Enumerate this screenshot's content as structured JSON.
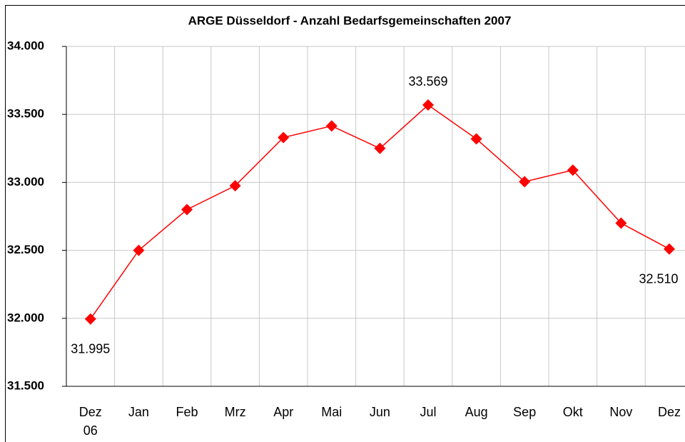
{
  "chart_data": {
    "type": "line",
    "title": "ARGE Düsseldorf - Anzahl Bedarfsgemeinschaften 2007",
    "categories": [
      "Dez 06",
      "Jan",
      "Feb",
      "Mrz",
      "Apr",
      "Mai",
      "Jun",
      "Jul",
      "Aug",
      "Sep",
      "Okt",
      "Nov",
      "Dez"
    ],
    "series": [
      {
        "name": "Bedarfsgemeinschaften",
        "color": "#ff0000",
        "values": [
          31995,
          32500,
          32800,
          32975,
          33330,
          33415,
          33250,
          33569,
          33320,
          33005,
          33090,
          32700,
          32510
        ],
        "value_labels": [
          "31.995",
          null,
          null,
          null,
          null,
          null,
          null,
          "33.569",
          null,
          null,
          null,
          null,
          "32.510"
        ]
      }
    ],
    "ylim": [
      31500,
      34000
    ],
    "yticks": [
      {
        "value": 31500,
        "label": "31.500"
      },
      {
        "value": 32000,
        "label": "32.000"
      },
      {
        "value": 32500,
        "label": "32.500"
      },
      {
        "value": 33000,
        "label": "33.000"
      },
      {
        "value": 33500,
        "label": "33.500"
      },
      {
        "value": 34000,
        "label": "34.000"
      }
    ],
    "grid": true
  }
}
